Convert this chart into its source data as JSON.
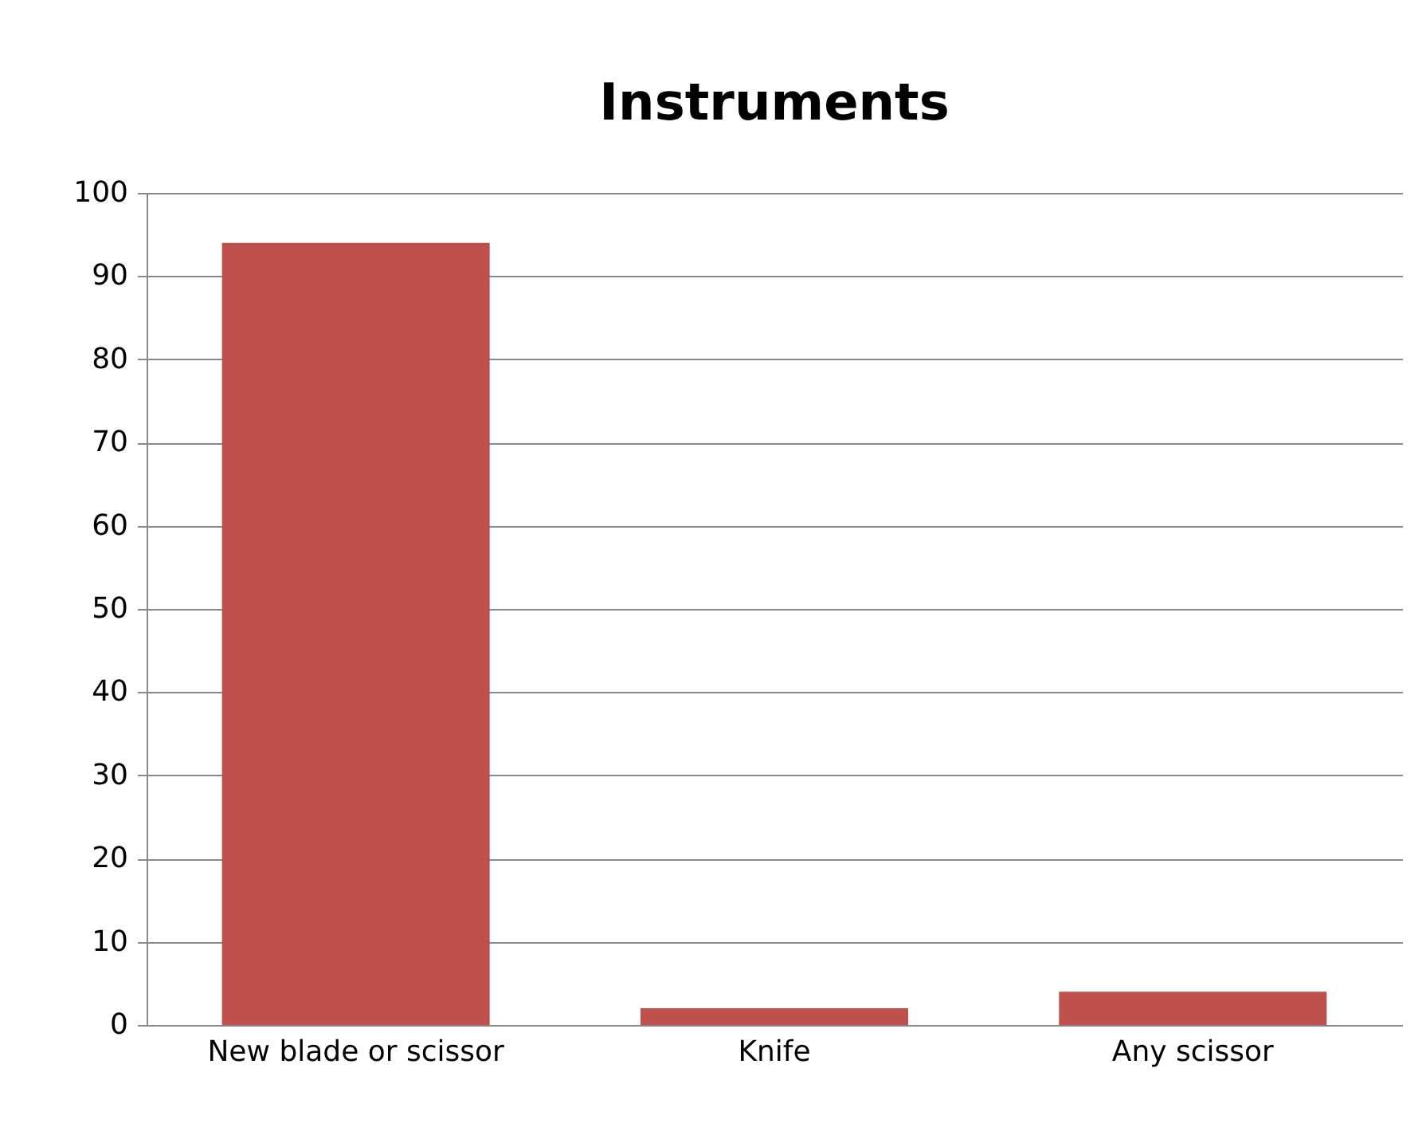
{
  "chart_data": {
    "type": "bar",
    "title": "Instruments",
    "categories": [
      "New blade or scissor",
      "Knife",
      "Any scissor"
    ],
    "values": [
      94,
      2,
      4
    ],
    "color": "#c0504d",
    "ylim": [
      0,
      100
    ],
    "yticks": [
      0,
      10,
      20,
      30,
      40,
      50,
      60,
      70,
      80,
      90,
      100
    ],
    "grid": "y"
  }
}
